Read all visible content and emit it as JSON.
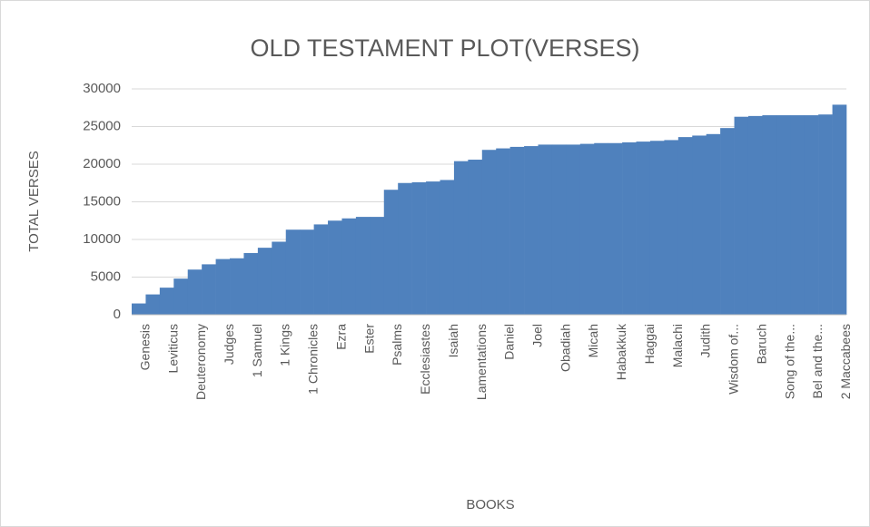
{
  "chart_data": {
    "type": "bar",
    "title": "OLD TESTAMENT PLOT(VERSES)",
    "x_label": "BOOKS",
    "y_label": "TOTAL VERSES",
    "categories": [
      "Genesis",
      null,
      "Leviticus",
      null,
      "Deuteronomy",
      null,
      "Judges",
      null,
      "1 Samuel",
      null,
      "1 Kings",
      null,
      "1 Chronicles",
      null,
      "Ezra",
      null,
      "Ester",
      null,
      "Psalms",
      null,
      "Ecclesiastes",
      null,
      "Isaiah",
      null,
      "Lamentations",
      null,
      "Daniel",
      null,
      "Joel",
      null,
      "Obadiah",
      null,
      "Micah",
      null,
      "Habakkuk",
      null,
      "Haggai",
      null,
      "Malachi",
      null,
      "Judith",
      null,
      "Wisdom of...",
      null,
      "Baruch",
      null,
      "Song of the...",
      null,
      "Bel and the...",
      null,
      "2 Maccabees"
    ],
    "values": [
      1500,
      2700,
      3600,
      4800,
      6000,
      6700,
      7400,
      7500,
      8200,
      8900,
      9700,
      11300,
      11300,
      12000,
      12500,
      12800,
      13000,
      13000,
      16600,
      17500,
      17600,
      17700,
      17900,
      20400,
      20600,
      21900,
      22100,
      22300,
      22400,
      22600,
      22600,
      22600,
      22700,
      22800,
      22800,
      22900,
      23000,
      23100,
      23200,
      23600,
      23800,
      24000,
      24800,
      26300,
      26400,
      26500,
      26500,
      26500,
      26500,
      26600,
      27900
    ],
    "color": "#4f81bd",
    "ylim": [
      0,
      30000
    ],
    "yticks": [
      0,
      5000,
      10000,
      15000,
      20000,
      25000,
      30000
    ],
    "grid": true
  }
}
